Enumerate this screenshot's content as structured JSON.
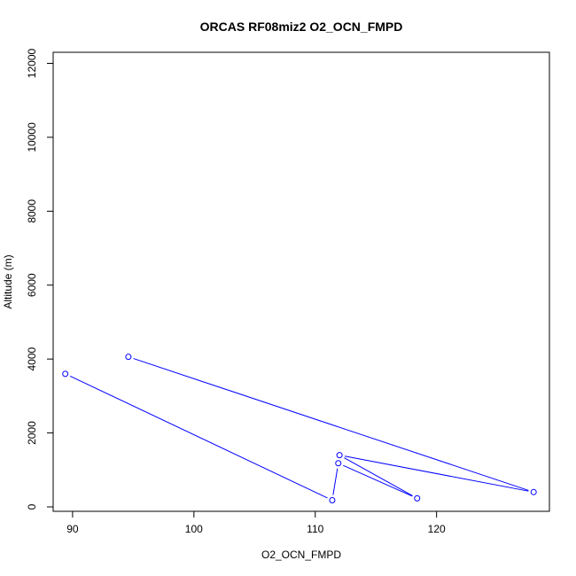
{
  "chart_data": {
    "type": "line",
    "title": "ORCAS RF08miz2 O2_OCN_FMPD",
    "xlabel": "O2_OCN_FMPD",
    "ylabel": "Altitude (m)",
    "xlim": [
      88.4,
      129.3
    ],
    "ylim": [
      -120,
      12300
    ],
    "xticks": [
      90,
      100,
      110,
      120
    ],
    "yticks": [
      0,
      2000,
      4000,
      6000,
      8000,
      10000,
      12000
    ],
    "grid": false,
    "color": "#0000ff",
    "series": [
      {
        "x": [
          94.6,
          128.0,
          112.0,
          118.4,
          111.9,
          111.4,
          89.4
        ],
        "y": [
          4060,
          400,
          1400,
          230,
          1180,
          180,
          3600
        ]
      }
    ]
  }
}
